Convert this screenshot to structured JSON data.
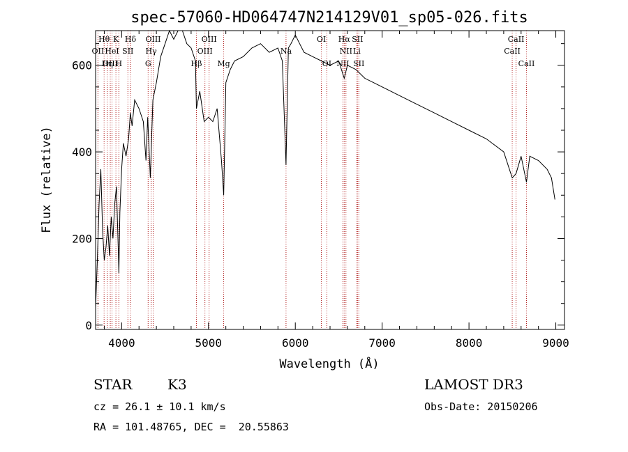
{
  "chart_data": {
    "type": "line",
    "title": "spec-57060-HD064747N214129V01_sp05-026.fits",
    "xlabel": "Wavelength (Å)",
    "ylabel": "Flux (relative)",
    "xlim": [
      3700,
      9100
    ],
    "ylim": [
      -10,
      680
    ],
    "x_ticks": [
      4000,
      5000,
      6000,
      7000,
      8000,
      9000
    ],
    "y_ticks": [
      0,
      200,
      400,
      600
    ],
    "series": [
      {
        "x": [
          3700,
          3720,
          3740,
          3760,
          3780,
          3800,
          3820,
          3840,
          3860,
          3880,
          3900,
          3920,
          3940,
          3960,
          3968,
          3980,
          4000,
          4020,
          4050,
          4080,
          4100,
          4120,
          4150,
          4200,
          4250,
          4280,
          4300,
          4330,
          4360,
          4400,
          4450,
          4500,
          4550,
          4600,
          4650,
          4700,
          4750,
          4800,
          4850,
          4861,
          4900,
          4950,
          5000,
          5050,
          5100,
          5150,
          5175,
          5200,
          5250,
          5300,
          5400,
          5500,
          5600,
          5700,
          5800,
          5850,
          5893,
          5920,
          5950,
          6000,
          6050,
          6100,
          6200,
          6300,
          6400,
          6500,
          6563,
          6600,
          6700,
          6800,
          6900,
          7000,
          7200,
          7400,
          7600,
          7800,
          8000,
          8200,
          8400,
          8498,
          8542,
          8600,
          8662,
          8700,
          8800,
          8900,
          8950,
          8990
        ],
        "y": [
          40,
          150,
          280,
          360,
          220,
          150,
          180,
          230,
          160,
          250,
          200,
          280,
          320,
          180,
          120,
          260,
          360,
          420,
          390,
          430,
          490,
          460,
          520,
          500,
          470,
          380,
          480,
          340,
          520,
          560,
          620,
          650,
          680,
          660,
          690,
          700,
          650,
          640,
          610,
          500,
          540,
          470,
          480,
          470,
          500,
          380,
          300,
          560,
          590,
          610,
          620,
          640,
          650,
          630,
          640,
          610,
          370,
          640,
          650,
          670,
          650,
          630,
          620,
          610,
          600,
          610,
          570,
          600,
          590,
          570,
          560,
          550,
          530,
          510,
          490,
          470,
          450,
          430,
          400,
          340,
          350,
          390,
          330,
          390,
          380,
          360,
          340,
          290
        ]
      }
    ],
    "spectral_lines": [
      {
        "name": "Hθ",
        "x": 3798,
        "row": 1
      },
      {
        "name": "OII",
        "x": 3727,
        "row": 2
      },
      {
        "name": "OIII",
        "x": 3869,
        "row": 3
      },
      {
        "name": "K",
        "x": 3934,
        "row": 1
      },
      {
        "name": "HeI",
        "x": 3889,
        "row": 2
      },
      {
        "name": "Hη",
        "x": 3835,
        "row": 3
      },
      {
        "name": "SII",
        "x": 4072,
        "row": 2
      },
      {
        "name": "H",
        "x": 3968,
        "row": 3
      },
      {
        "name": "Hδ",
        "x": 4102,
        "row": 1
      },
      {
        "name": "OIII",
        "x": 4363,
        "row": 1
      },
      {
        "name": "Hγ",
        "x": 4340,
        "row": 2
      },
      {
        "name": "G",
        "x": 4305,
        "row": 3
      },
      {
        "name": "OIII",
        "x": 5007,
        "row": 1
      },
      {
        "name": "OIII",
        "x": 4959,
        "row": 2
      },
      {
        "name": "Hβ",
        "x": 4861,
        "row": 3
      },
      {
        "name": "Mg",
        "x": 5175,
        "row": 3
      },
      {
        "name": "Na",
        "x": 5893,
        "row": 2
      },
      {
        "name": "OI",
        "x": 6300,
        "row": 1
      },
      {
        "name": "OI",
        "x": 6363,
        "row": 3
      },
      {
        "name": "Hα",
        "x": 6563,
        "row": 1
      },
      {
        "name": "NII",
        "x": 6583,
        "row": 2
      },
      {
        "name": "NII",
        "x": 6548,
        "row": 3
      },
      {
        "name": "SII",
        "x": 6716,
        "row": 1
      },
      {
        "name": "Li",
        "x": 6708,
        "row": 2
      },
      {
        "name": "SII",
        "x": 6731,
        "row": 3
      },
      {
        "name": "CaII",
        "x": 8542,
        "row": 1
      },
      {
        "name": "CaII",
        "x": 8498,
        "row": 2
      },
      {
        "name": "CaII",
        "x": 8662,
        "row": 3
      }
    ]
  },
  "info": {
    "class_label": "STAR",
    "subclass": "K3",
    "survey": "LAMOST DR3",
    "cz": "cz = 26.1 ± 10.1 km/s",
    "obs_date": "Obs-Date: 20150206",
    "radec": "RA = 101.48765, DEC =  20.55863"
  },
  "colors": {
    "line": "#000000",
    "marker": "#b22222"
  }
}
